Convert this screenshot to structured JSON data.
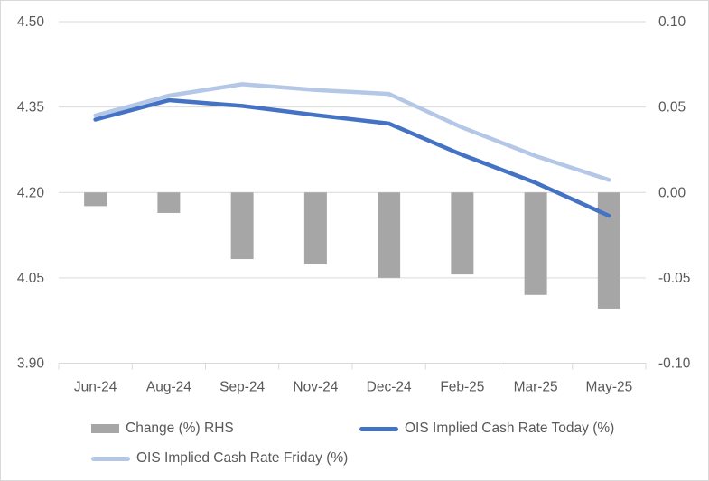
{
  "chart_data": {
    "type": "bar",
    "subtype": "combo-bar-line",
    "title": "",
    "xlabel": "",
    "ylabel": "",
    "categories": [
      "Jun-24",
      "Aug-24",
      "Sep-24",
      "Nov-24",
      "Dec-24",
      "Feb-25",
      "Mar-25",
      "May-25"
    ],
    "series": [
      {
        "name": "Change (%) RHS",
        "kind": "bar",
        "axis": "right",
        "color": "#a6a6a6",
        "values": [
          -0.008,
          -0.012,
          -0.039,
          -0.042,
          -0.05,
          -0.048,
          -0.06,
          -0.068
        ]
      },
      {
        "name": "OIS Implied Cash Rate Today (%)",
        "kind": "line",
        "axis": "left",
        "color": "#4472c4",
        "values": [
          4.328,
          4.362,
          4.352,
          4.336,
          4.321,
          4.266,
          4.217,
          4.159
        ]
      },
      {
        "name": "OIS Implied Cash Rate Friday (%)",
        "kind": "line",
        "axis": "left",
        "color": "#b4c7e7",
        "values": [
          4.335,
          4.37,
          4.39,
          4.38,
          4.373,
          4.314,
          4.264,
          4.222
        ]
      }
    ],
    "left_axis": {
      "min": 3.9,
      "max": 4.5,
      "tick_labels": [
        "4.50",
        "4.35",
        "4.20",
        "4.05",
        "3.90"
      ]
    },
    "right_axis": {
      "min": -0.1,
      "max": 0.1,
      "tick_labels": [
        "0.10",
        "0.05",
        "0.00",
        "-0.05",
        "-0.10"
      ]
    },
    "grid": "horizontal",
    "legend_position": "bottom"
  },
  "legend": {
    "items": [
      {
        "label": "Change (%) RHS",
        "swatch": "bar",
        "color": "#a6a6a6"
      },
      {
        "label": "OIS Implied Cash Rate Today (%)",
        "swatch": "line",
        "color": "#4472c4"
      },
      {
        "label": "OIS Implied Cash Rate Friday (%)",
        "swatch": "line",
        "color": "#b4c7e7"
      }
    ]
  },
  "colors": {
    "grid": "#d9d9d9",
    "tick": "#d9d9d9",
    "axis_text": "#595959",
    "background": "#ffffff",
    "frame_border": "#d9d9d9"
  }
}
